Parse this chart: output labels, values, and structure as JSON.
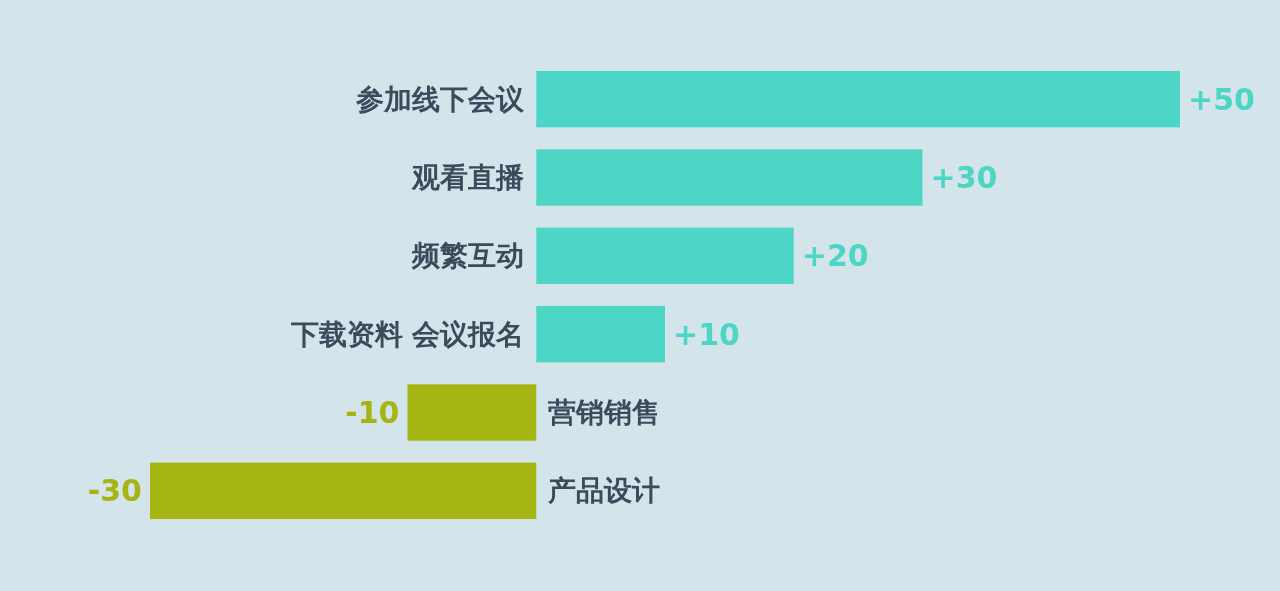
{
  "chart_data": {
    "type": "bar",
    "orientation": "horizontal",
    "categories": [
      "参加线下会议",
      "观看直播",
      "频繁互动",
      "下载资料 会议报名",
      "营销销售",
      "产品设计"
    ],
    "values": [
      50,
      30,
      20,
      10,
      -10,
      -30
    ],
    "colors": [
      "#4dd5c5",
      "#4dd5c5",
      "#4dd5c5",
      "#4dd5c5",
      "#a5b614",
      "#a5b614"
    ],
    "value_labels": [
      "+50",
      "+30",
      "+20",
      "+10",
      "-10",
      "-30"
    ]
  }
}
